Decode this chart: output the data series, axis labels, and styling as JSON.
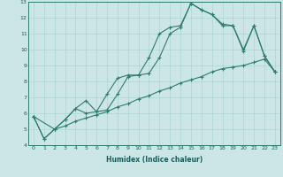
{
  "xlabel": "Humidex (Indice chaleur)",
  "ylabel": "",
  "bg_color": "#cce5e5",
  "line_color": "#2e7d6e",
  "xlim": [
    -0.5,
    23.5
  ],
  "ylim": [
    4,
    13
  ],
  "xticks": [
    0,
    1,
    2,
    3,
    4,
    5,
    6,
    7,
    8,
    9,
    10,
    11,
    12,
    13,
    14,
    15,
    16,
    17,
    18,
    19,
    20,
    21,
    22,
    23
  ],
  "yticks": [
    4,
    5,
    6,
    7,
    8,
    9,
    10,
    11,
    12,
    13
  ],
  "line1_x": [
    0,
    1,
    2,
    3,
    4,
    5,
    6,
    7,
    8,
    9,
    10,
    11,
    12,
    13,
    14,
    15,
    16,
    17,
    18,
    19,
    20,
    21,
    22,
    23
  ],
  "line1_y": [
    5.8,
    4.4,
    5.0,
    5.6,
    6.3,
    6.8,
    6.1,
    6.2,
    7.2,
    8.3,
    8.4,
    8.5,
    9.5,
    11.0,
    11.4,
    12.9,
    12.5,
    12.2,
    11.6,
    11.5,
    9.9,
    11.5,
    9.6,
    8.6
  ],
  "line2_x": [
    0,
    2,
    3,
    4,
    5,
    6,
    7,
    8,
    9,
    10,
    11,
    12,
    13,
    14,
    15,
    16,
    17,
    18,
    19,
    20,
    21,
    22,
    23
  ],
  "line2_y": [
    5.8,
    5.0,
    5.6,
    6.3,
    6.0,
    6.1,
    7.2,
    8.2,
    8.4,
    8.4,
    9.5,
    11.0,
    11.4,
    11.5,
    12.9,
    12.5,
    12.2,
    11.5,
    11.5,
    10.0,
    11.5,
    9.6,
    8.6
  ],
  "line3_x": [
    0,
    1,
    2,
    3,
    4,
    5,
    6,
    7,
    8,
    9,
    10,
    11,
    12,
    13,
    14,
    15,
    16,
    17,
    18,
    19,
    20,
    21,
    22,
    23
  ],
  "line3_y": [
    5.8,
    4.4,
    5.0,
    5.2,
    5.5,
    5.7,
    5.9,
    6.1,
    6.4,
    6.6,
    6.9,
    7.1,
    7.4,
    7.6,
    7.9,
    8.1,
    8.3,
    8.6,
    8.8,
    8.9,
    9.0,
    9.2,
    9.4,
    8.6
  ],
  "tick_fontsize": 4.5,
  "xlabel_fontsize": 5.5,
  "grid_color": "#a8d0d0",
  "spine_color": "#2e7d6e",
  "tick_color": "#1a5f5f"
}
